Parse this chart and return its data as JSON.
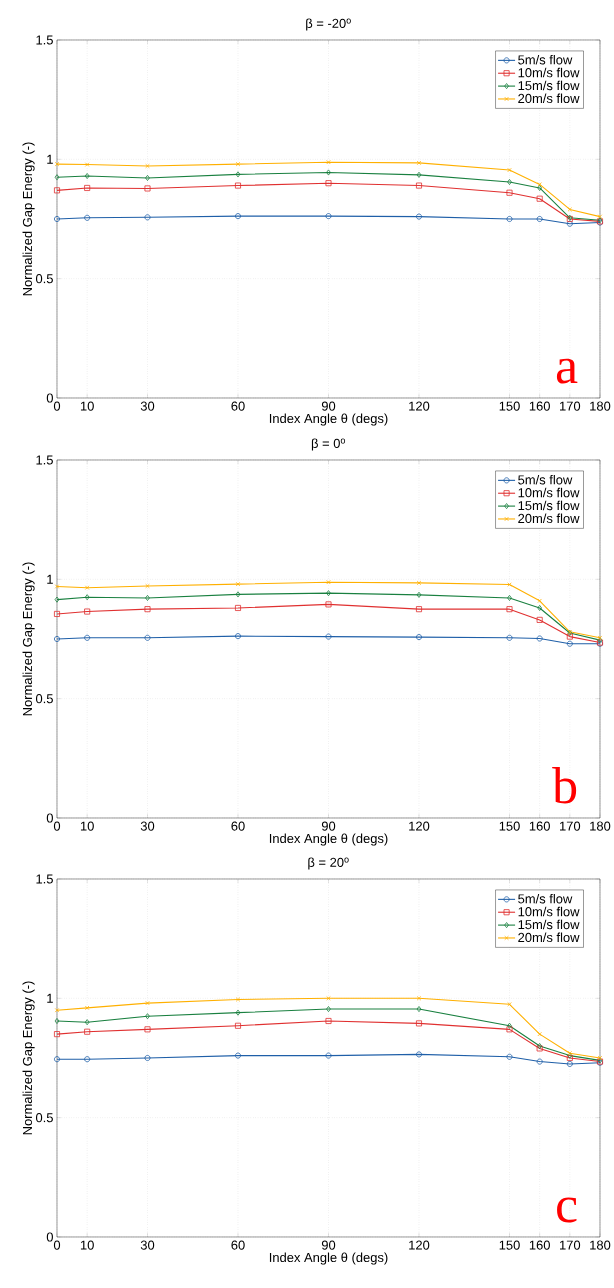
{
  "chart_data": [
    {
      "type": "line",
      "title": "β = -20$^{o}$",
      "xlabel": "Index Angle θ (degs)",
      "ylabel": "Normalized Gap Energy (-)",
      "x": [
        0,
        10,
        30,
        60,
        90,
        120,
        150,
        160,
        170,
        180
      ],
      "xlim": [
        0,
        180
      ],
      "ylim": [
        0,
        1.5
      ],
      "xticks": [
        0,
        10,
        30,
        60,
        90,
        120,
        150,
        160,
        170,
        180
      ],
      "yticks": [
        0,
        0.5,
        1,
        1.5
      ],
      "grid": true,
      "legend": "top right",
      "line_style": "solid",
      "annotations": [
        "a"
      ],
      "series": [
        {
          "name": "5m/s flow",
          "color": "#1f5fa8",
          "marker": "circle",
          "values": [
            0.75,
            0.755,
            0.757,
            0.762,
            0.762,
            0.76,
            0.75,
            0.75,
            0.73,
            0.735
          ]
        },
        {
          "name": "10m/s flow",
          "color": "#e03030",
          "marker": "square",
          "values": [
            0.87,
            0.88,
            0.878,
            0.89,
            0.9,
            0.89,
            0.86,
            0.835,
            0.75,
            0.74
          ]
        },
        {
          "name": "15m/s flow",
          "color": "#1a8040",
          "marker": "diamond",
          "values": [
            0.925,
            0.93,
            0.922,
            0.937,
            0.945,
            0.935,
            0.905,
            0.88,
            0.755,
            0.745
          ]
        },
        {
          "name": "20m/s flow",
          "color": "#ffb000",
          "marker": "cross",
          "values": [
            0.98,
            0.978,
            0.972,
            0.98,
            0.988,
            0.985,
            0.955,
            0.895,
            0.79,
            0.76
          ]
        }
      ]
    },
    {
      "type": "line",
      "title": "β = 0$^{o}$",
      "xlabel": "Index Angle θ (degs)",
      "ylabel": "Normalized Gap Energy (-)",
      "x": [
        0,
        10,
        30,
        60,
        90,
        120,
        150,
        160,
        170,
        180
      ],
      "xlim": [
        0,
        180
      ],
      "ylim": [
        0,
        1.5
      ],
      "xticks": [
        0,
        10,
        30,
        60,
        90,
        120,
        150,
        160,
        170,
        180
      ],
      "yticks": [
        0,
        0.5,
        1,
        1.5
      ],
      "grid": true,
      "legend": "top right",
      "line_style": "solid",
      "annotations": [
        "b"
      ],
      "series": [
        {
          "name": "5m/s flow",
          "color": "#1f5fa8",
          "marker": "circle",
          "values": [
            0.75,
            0.755,
            0.755,
            0.762,
            0.76,
            0.758,
            0.755,
            0.752,
            0.73,
            0.73
          ]
        },
        {
          "name": "10m/s flow",
          "color": "#e03030",
          "marker": "square",
          "values": [
            0.855,
            0.865,
            0.875,
            0.88,
            0.895,
            0.875,
            0.875,
            0.83,
            0.76,
            0.735
          ]
        },
        {
          "name": "15m/s flow",
          "color": "#1a8040",
          "marker": "diamond",
          "values": [
            0.915,
            0.925,
            0.922,
            0.937,
            0.942,
            0.935,
            0.922,
            0.88,
            0.775,
            0.745
          ]
        },
        {
          "name": "20m/s flow",
          "color": "#ffb000",
          "marker": "cross",
          "values": [
            0.97,
            0.965,
            0.972,
            0.98,
            0.988,
            0.985,
            0.978,
            0.91,
            0.78,
            0.755
          ]
        }
      ]
    },
    {
      "type": "line",
      "title": "β = 20$^{o}$",
      "xlabel": "Index Angle θ (degs)",
      "ylabel": "Normalized Gap Energy (-)",
      "x": [
        0,
        10,
        30,
        60,
        90,
        120,
        150,
        160,
        170,
        180
      ],
      "xlim": [
        0,
        180
      ],
      "ylim": [
        0,
        1.5
      ],
      "xticks": [
        0,
        10,
        30,
        60,
        90,
        120,
        150,
        160,
        170,
        180
      ],
      "yticks": [
        0,
        0.5,
        1,
        1.5
      ],
      "grid": true,
      "legend": "top right",
      "line_style": "solid",
      "annotations": [
        "c"
      ],
      "series": [
        {
          "name": "5m/s flow",
          "color": "#1f5fa8",
          "marker": "circle",
          "values": [
            0.745,
            0.745,
            0.75,
            0.76,
            0.76,
            0.765,
            0.755,
            0.735,
            0.725,
            0.73
          ]
        },
        {
          "name": "10m/s flow",
          "color": "#e03030",
          "marker": "square",
          "values": [
            0.85,
            0.86,
            0.87,
            0.885,
            0.905,
            0.895,
            0.87,
            0.79,
            0.75,
            0.735
          ]
        },
        {
          "name": "15m/s flow",
          "color": "#1a8040",
          "marker": "diamond",
          "values": [
            0.905,
            0.9,
            0.925,
            0.94,
            0.955,
            0.955,
            0.885,
            0.8,
            0.76,
            0.74
          ]
        },
        {
          "name": "20m/s flow",
          "color": "#ffb000",
          "marker": "cross",
          "values": [
            0.95,
            0.96,
            0.98,
            0.995,
            1.0,
            1.0,
            0.975,
            0.85,
            0.77,
            0.75
          ]
        }
      ]
    }
  ]
}
